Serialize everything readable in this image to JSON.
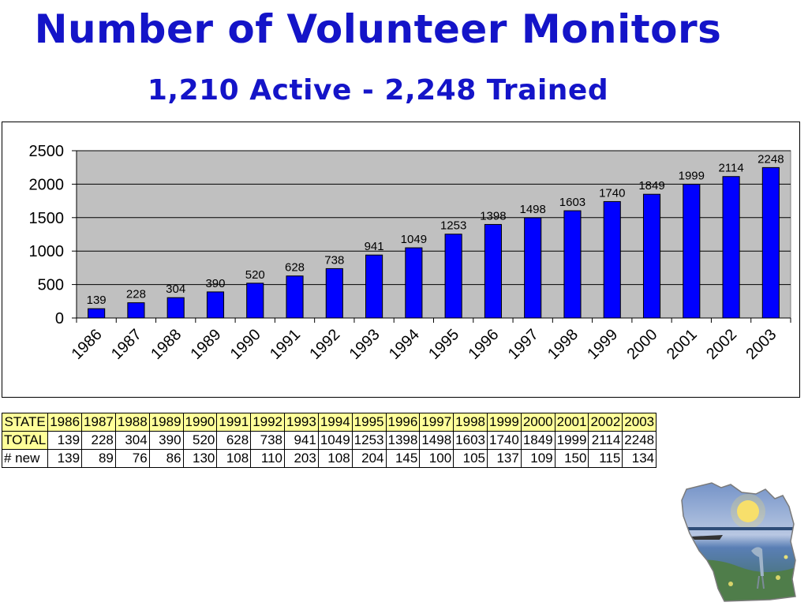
{
  "header": {
    "title": "Number of Volunteer Monitors",
    "subtitle": "1,210 Active - 2,248 Trained"
  },
  "chart_data": {
    "type": "bar",
    "categories": [
      "1986",
      "1987",
      "1988",
      "1989",
      "1990",
      "1991",
      "1992",
      "1993",
      "1994",
      "1995",
      "1996",
      "1997",
      "1998",
      "1999",
      "2000",
      "2001",
      "2002",
      "2003"
    ],
    "values": [
      139,
      228,
      304,
      390,
      520,
      628,
      738,
      941,
      1049,
      1253,
      1398,
      1498,
      1603,
      1740,
      1849,
      1999,
      2114,
      2248
    ],
    "ylim": [
      0,
      2500
    ],
    "yticks": [
      0,
      500,
      1000,
      1500,
      2000,
      2500
    ],
    "grid": true,
    "legend": "none",
    "colors": {
      "bar": "#0000ff",
      "plot_background": "#c0c0c0"
    }
  },
  "table": {
    "header_label": "STATE",
    "rows": [
      {
        "label": "TOTAL",
        "values": [
          "139",
          "228",
          "304",
          "390",
          "520",
          "628",
          "738",
          "941",
          "1049",
          "1253",
          "1398",
          "1498",
          "1603",
          "1740",
          "1849",
          "1999",
          "2114",
          "2248"
        ]
      },
      {
        "label": "# new",
        "values": [
          "139",
          "89",
          "76",
          "86",
          "130",
          "108",
          "110",
          "203",
          "108",
          "204",
          "145",
          "100",
          "105",
          "137",
          "109",
          "150",
          "115",
          "134"
        ]
      }
    ],
    "header_color": "#ffff99"
  },
  "logo": {
    "name": "wisconsin-state-logo",
    "colors": [
      "#5a8fc0",
      "#3f6a3a",
      "#f4d25a"
    ]
  }
}
